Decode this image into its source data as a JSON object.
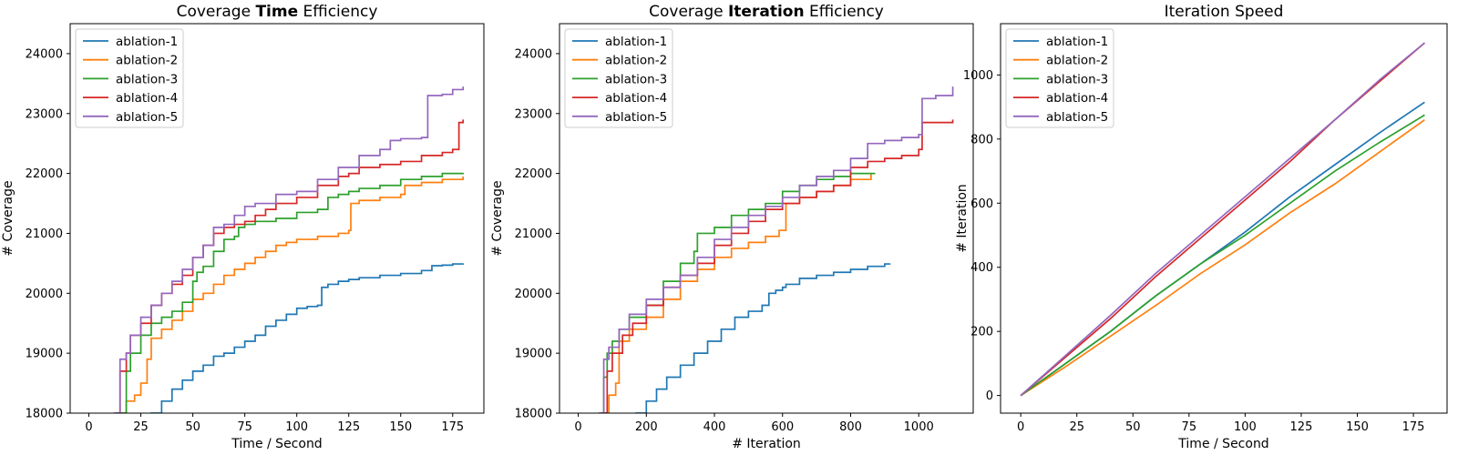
{
  "colors": {
    "ablation-1": "#1f77b4",
    "ablation-2": "#ff7f0e",
    "ablation-3": "#2ca02c",
    "ablation-4": "#d62728",
    "ablation-5": "#9467bd"
  },
  "chart_data": [
    {
      "type": "line",
      "step": true,
      "title": {
        "prefix": "Coverage ",
        "bold": "Time",
        "suffix": " Efficiency"
      },
      "xlabel": "Time / Second",
      "ylabel": "# Coverage",
      "xlim": [
        -9,
        190
      ],
      "ylim": [
        18000,
        24500
      ],
      "xticks": [
        0,
        25,
        50,
        75,
        100,
        125,
        150,
        175
      ],
      "yticks": [
        18000,
        19000,
        20000,
        21000,
        22000,
        23000,
        24000
      ],
      "grid": false,
      "legend": "top-left",
      "series": [
        {
          "name": "ablation-1",
          "x": [
            20,
            30,
            35,
            40,
            45,
            50,
            55,
            60,
            65,
            70,
            75,
            80,
            85,
            90,
            95,
            100,
            105,
            110,
            112,
            115,
            120,
            125,
            130,
            140,
            150,
            160,
            165,
            170,
            175,
            180
          ],
          "y": [
            17900,
            18000,
            18200,
            18400,
            18550,
            18700,
            18800,
            18950,
            19000,
            19100,
            19200,
            19300,
            19450,
            19550,
            19650,
            19750,
            19780,
            19800,
            20100,
            20150,
            20200,
            20230,
            20260,
            20300,
            20330,
            20380,
            20460,
            20470,
            20490,
            20500
          ]
        },
        {
          "name": "ablation-2",
          "x": [
            14,
            18,
            22,
            25,
            28,
            30,
            35,
            40,
            45,
            50,
            55,
            60,
            65,
            70,
            75,
            80,
            85,
            90,
            95,
            100,
            110,
            120,
            125,
            126,
            130,
            140,
            150,
            152,
            160,
            170,
            180
          ],
          "y": [
            18000,
            18200,
            18300,
            18500,
            18900,
            19250,
            19400,
            19550,
            19700,
            19900,
            20000,
            20150,
            20300,
            20400,
            20500,
            20600,
            20700,
            20800,
            20850,
            20900,
            20950,
            21000,
            21050,
            21500,
            21550,
            21600,
            21650,
            21800,
            21850,
            21900,
            21950
          ]
        },
        {
          "name": "ablation-3",
          "x": [
            15,
            18,
            20,
            25,
            30,
            35,
            40,
            45,
            50,
            52,
            55,
            60,
            65,
            70,
            72,
            75,
            80,
            90,
            100,
            110,
            115,
            120,
            125,
            130,
            140,
            150,
            160,
            170,
            180
          ],
          "y": [
            18000,
            18700,
            19000,
            19300,
            19500,
            19600,
            19700,
            19850,
            20200,
            20350,
            20450,
            20700,
            20900,
            20950,
            21100,
            21150,
            21200,
            21250,
            21350,
            21400,
            21600,
            21650,
            21700,
            21750,
            21800,
            21900,
            21950,
            22000,
            22010
          ]
        },
        {
          "name": "ablation-4",
          "x": [
            13,
            15,
            18,
            20,
            25,
            30,
            35,
            40,
            45,
            50,
            55,
            60,
            65,
            70,
            75,
            80,
            85,
            90,
            100,
            110,
            120,
            125,
            130,
            140,
            150,
            160,
            170,
            175,
            178,
            180
          ],
          "y": [
            18000,
            18700,
            19000,
            19300,
            19500,
            19800,
            20000,
            20150,
            20300,
            20600,
            20800,
            21000,
            21100,
            21150,
            21200,
            21300,
            21400,
            21500,
            21600,
            21800,
            21950,
            22000,
            22100,
            22150,
            22200,
            22300,
            22350,
            22400,
            22850,
            22900
          ]
        },
        {
          "name": "ablation-5",
          "x": [
            12,
            15,
            18,
            20,
            25,
            30,
            35,
            40,
            45,
            50,
            55,
            60,
            65,
            70,
            75,
            80,
            90,
            100,
            110,
            120,
            130,
            140,
            145,
            150,
            160,
            163,
            170,
            175,
            180
          ],
          "y": [
            18000,
            18900,
            19000,
            19300,
            19600,
            19800,
            20000,
            20200,
            20400,
            20600,
            20800,
            21100,
            21150,
            21300,
            21450,
            21500,
            21650,
            21700,
            21900,
            22100,
            22300,
            22400,
            22550,
            22580,
            22600,
            23300,
            23320,
            23400,
            23450
          ]
        }
      ]
    },
    {
      "type": "line",
      "step": true,
      "title": {
        "prefix": "Coverage ",
        "bold": "Iteration",
        "suffix": " Efficiency"
      },
      "xlabel": "# Iteration",
      "ylabel": "# Coverage",
      "xlim": [
        -55,
        1160
      ],
      "ylim": [
        18000,
        24500
      ],
      "xticks": [
        0,
        200,
        400,
        600,
        800,
        1000
      ],
      "yticks": [
        18000,
        19000,
        20000,
        21000,
        22000,
        23000,
        24000
      ],
      "grid": false,
      "legend": "top-left",
      "series": [
        {
          "name": "ablation-1",
          "x": [
            140,
            170,
            200,
            230,
            260,
            300,
            340,
            380,
            420,
            460,
            500,
            540,
            560,
            580,
            600,
            610,
            650,
            700,
            750,
            800,
            850,
            900,
            915
          ],
          "y": [
            17950,
            18000,
            18200,
            18400,
            18600,
            18800,
            19000,
            19200,
            19400,
            19600,
            19700,
            19800,
            20000,
            20050,
            20100,
            20150,
            20250,
            20300,
            20350,
            20400,
            20450,
            20490,
            20500
          ]
        },
        {
          "name": "ablation-2",
          "x": [
            70,
            90,
            110,
            120,
            150,
            200,
            250,
            300,
            350,
            400,
            450,
            500,
            550,
            590,
            610,
            650,
            700,
            750,
            800,
            860
          ],
          "y": [
            18000,
            18300,
            18500,
            19200,
            19400,
            19600,
            19900,
            20200,
            20400,
            20600,
            20750,
            20850,
            20950,
            21050,
            21500,
            21600,
            21700,
            21800,
            21900,
            22000
          ]
        },
        {
          "name": "ablation-3",
          "x": [
            65,
            75,
            85,
            100,
            120,
            150,
            200,
            250,
            300,
            340,
            350,
            400,
            450,
            500,
            550,
            600,
            650,
            700,
            750,
            800,
            870
          ],
          "y": [
            18000,
            18600,
            19000,
            19200,
            19400,
            19600,
            19800,
            20200,
            20500,
            20700,
            21000,
            21100,
            21300,
            21400,
            21500,
            21700,
            21800,
            21900,
            21950,
            22000,
            22010
          ]
        },
        {
          "name": "ablation-4",
          "x": [
            70,
            85,
            100,
            130,
            160,
            200,
            250,
            300,
            350,
            400,
            450,
            500,
            550,
            600,
            650,
            700,
            750,
            800,
            850,
            900,
            950,
            1000,
            1010,
            1100
          ],
          "y": [
            18000,
            18700,
            19000,
            19300,
            19500,
            19800,
            20100,
            20300,
            20500,
            20800,
            21000,
            21200,
            21400,
            21500,
            21600,
            21700,
            21800,
            22100,
            22200,
            22250,
            22300,
            22400,
            22850,
            22900
          ]
        },
        {
          "name": "ablation-5",
          "x": [
            60,
            75,
            90,
            120,
            150,
            200,
            250,
            300,
            350,
            400,
            450,
            500,
            550,
            600,
            650,
            700,
            750,
            800,
            850,
            900,
            950,
            1000,
            1010,
            1050,
            1100
          ],
          "y": [
            18000,
            18900,
            19100,
            19400,
            19650,
            19900,
            20100,
            20300,
            20600,
            20900,
            21100,
            21300,
            21450,
            21600,
            21800,
            21950,
            22050,
            22250,
            22500,
            22550,
            22600,
            22650,
            23250,
            23300,
            23450
          ]
        }
      ]
    },
    {
      "type": "line",
      "step": false,
      "title": {
        "prefix": "Iteration Speed",
        "bold": "",
        "suffix": ""
      },
      "xlabel": "Time / Second",
      "ylabel": "# Iteration",
      "xlim": [
        -9,
        190
      ],
      "ylim": [
        -55,
        1160
      ],
      "xticks": [
        0,
        25,
        50,
        75,
        100,
        125,
        150,
        175
      ],
      "yticks": [
        0,
        200,
        400,
        600,
        800,
        1000
      ],
      "grid": false,
      "legend": "top-left",
      "series": [
        {
          "name": "ablation-1",
          "x": [
            0,
            20,
            40,
            60,
            80,
            100,
            120,
            140,
            160,
            180
          ],
          "y": [
            0,
            100,
            200,
            310,
            410,
            510,
            620,
            720,
            820,
            915
          ]
        },
        {
          "name": "ablation-2",
          "x": [
            0,
            20,
            40,
            60,
            80,
            100,
            120,
            140,
            160,
            180
          ],
          "y": [
            0,
            90,
            185,
            280,
            380,
            470,
            570,
            660,
            760,
            860
          ]
        },
        {
          "name": "ablation-3",
          "x": [
            0,
            20,
            40,
            60,
            80,
            100,
            120,
            140,
            160,
            180
          ],
          "y": [
            0,
            100,
            200,
            310,
            410,
            500,
            600,
            700,
            790,
            875
          ]
        },
        {
          "name": "ablation-4",
          "x": [
            0,
            20,
            40,
            60,
            80,
            100,
            120,
            140,
            160,
            180
          ],
          "y": [
            0,
            120,
            240,
            370,
            490,
            610,
            730,
            860,
            980,
            1100
          ]
        },
        {
          "name": "ablation-5",
          "x": [
            0,
            20,
            40,
            60,
            80,
            100,
            120,
            140,
            160,
            180
          ],
          "y": [
            0,
            125,
            250,
            380,
            500,
            620,
            740,
            860,
            985,
            1100
          ]
        }
      ]
    }
  ]
}
